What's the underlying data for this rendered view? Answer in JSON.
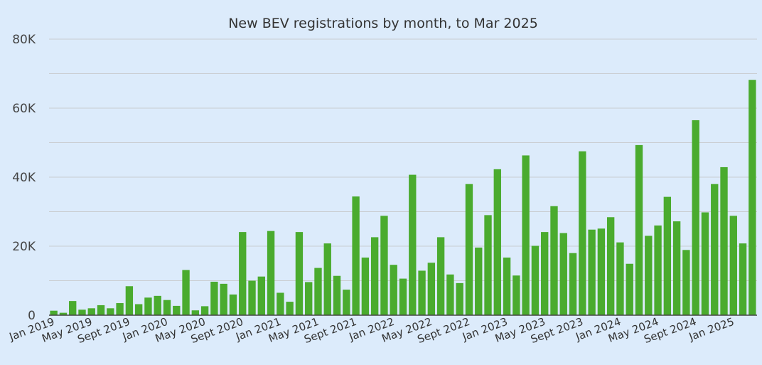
{
  "chart_data": {
    "type": "bar",
    "title": "New BEV registrations by month, to  Mar 2025",
    "xlabel": "",
    "ylabel": "",
    "ylim": [
      0,
      80000
    ],
    "y_ticks": [
      {
        "value": 0,
        "label": "0"
      },
      {
        "value": 20000,
        "label": "20K"
      },
      {
        "value": 40000,
        "label": "40K"
      },
      {
        "value": 60000,
        "label": "60K"
      },
      {
        "value": 80000,
        "label": "80K"
      }
    ],
    "grid": true,
    "legend": "none",
    "bar_color": "#4aab2e",
    "categories": [
      "Jan 2019",
      "Feb 2019",
      "Mar 2019",
      "Apr 2019",
      "May 2019",
      "Jun 2019",
      "Jul 2019",
      "Aug 2019",
      "Sept 2019",
      "Oct 2019",
      "Nov 2019",
      "Dec 2019",
      "Jan 2020",
      "Feb 2020",
      "Mar 2020",
      "Apr 2020",
      "May 2020",
      "Jun 2020",
      "Jul 2020",
      "Aug 2020",
      "Sept 2020",
      "Oct 2020",
      "Nov 2020",
      "Dec 2020",
      "Jan 2021",
      "Feb 2021",
      "Mar 2021",
      "Apr 2021",
      "May 2021",
      "Jun 2021",
      "Jul 2021",
      "Aug 2021",
      "Sept 2021",
      "Oct 2021",
      "Nov 2021",
      "Dec 2021",
      "Jan 2022",
      "Feb 2022",
      "Mar 2022",
      "Apr 2022",
      "May 2022",
      "Jun 2022",
      "Jul 2022",
      "Aug 2022",
      "Sept 2022",
      "Oct 2022",
      "Nov 2022",
      "Dec 2022",
      "Jan 2023",
      "Feb 2023",
      "Mar 2023",
      "Apr 2023",
      "May 2023",
      "Jun 2023",
      "Jul 2023",
      "Aug 2023",
      "Sept 2023",
      "Oct 2023",
      "Nov 2023",
      "Dec 2023",
      "Jan 2024",
      "Feb 2024",
      "Mar 2024",
      "Apr 2024",
      "May 2024",
      "Jun 2024",
      "Jul 2024",
      "Aug 2024",
      "Sept 2024",
      "Oct 2024",
      "Nov 2024",
      "Dec 2024",
      "Jan 2025",
      "Feb 2025",
      "Mar 2025"
    ],
    "values": [
      1300,
      700,
      4100,
      1600,
      2000,
      2900,
      2000,
      3500,
      8400,
      3200,
      5100,
      5600,
      4400,
      2700,
      13100,
      1400,
      2600,
      9700,
      9100,
      6000,
      24100,
      10000,
      11200,
      24400,
      6500,
      3900,
      24100,
      9600,
      13700,
      20800,
      11400,
      7400,
      34400,
      16700,
      22600,
      28800,
      14600,
      10600,
      40700,
      12900,
      15200,
      22600,
      11800,
      9300,
      38000,
      19600,
      29000,
      42300,
      16700,
      11500,
      46300,
      20100,
      24100,
      31600,
      23800,
      18000,
      47500,
      24800,
      25100,
      28400,
      21100,
      14900,
      49300,
      23000,
      26000,
      34300,
      27200,
      18900,
      56500,
      29800,
      38000,
      42900,
      28800,
      20800,
      68200
    ],
    "x_tick_labels": [
      {
        "index": 0,
        "label": "Jan 2019"
      },
      {
        "index": 4,
        "label": "May 2019"
      },
      {
        "index": 8,
        "label": "Sept 2019"
      },
      {
        "index": 12,
        "label": "Jan 2020"
      },
      {
        "index": 16,
        "label": "May 2020"
      },
      {
        "index": 20,
        "label": "Sept 2020"
      },
      {
        "index": 24,
        "label": "Jan 2021"
      },
      {
        "index": 28,
        "label": "May 2021"
      },
      {
        "index": 32,
        "label": "Sept 2021"
      },
      {
        "index": 36,
        "label": "Jan 2022"
      },
      {
        "index": 40,
        "label": "May 2022"
      },
      {
        "index": 44,
        "label": "Sept 2022"
      },
      {
        "index": 48,
        "label": "Jan 2023"
      },
      {
        "index": 52,
        "label": "May 2023"
      },
      {
        "index": 56,
        "label": "Sept 2023"
      },
      {
        "index": 60,
        "label": "Jan 2024"
      },
      {
        "index": 64,
        "label": "May 2024"
      },
      {
        "index": 68,
        "label": "Sept 2024"
      },
      {
        "index": 72,
        "label": "Jan 2025"
      }
    ]
  }
}
